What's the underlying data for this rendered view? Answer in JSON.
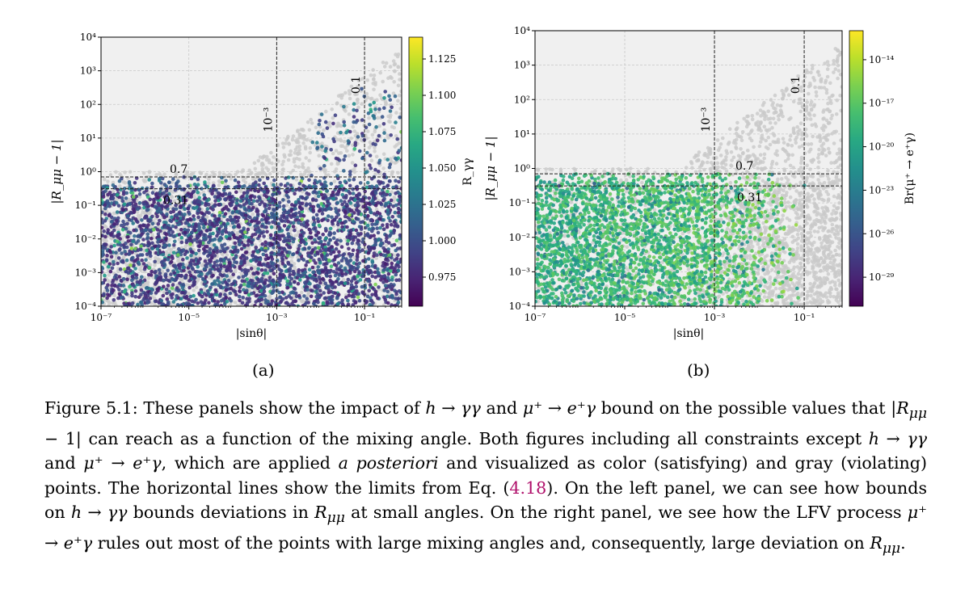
{
  "figure": {
    "panels": [
      {
        "id": "a",
        "sublabel": "(a)",
        "xlabel": "|sinθ|",
        "ylabel": "|R_μμ − 1|",
        "colorbar_label": "R_γγ",
        "colorbar_ticks": [
          "1.125",
          "1.100",
          "1.075",
          "1.050",
          "1.025",
          "1.000",
          "0.975"
        ],
        "x_ticks": [
          "10⁻⁷",
          "10⁻⁵",
          "10⁻³",
          "10⁻¹"
        ],
        "y_ticks": [
          "10⁴",
          "10³",
          "10²",
          "10¹",
          "10⁰",
          "10⁻¹",
          "10⁻²",
          "10⁻³",
          "10⁻⁴"
        ],
        "vline_labels": [
          "10⁻³",
          "0.1"
        ],
        "hline_labels": [
          "0.7",
          "0.31"
        ]
      },
      {
        "id": "b",
        "sublabel": "(b)",
        "xlabel": "|sinθ|",
        "ylabel": "|R_μμ − 1|",
        "colorbar_label": "Br(μ⁺ → e⁺γ)",
        "colorbar_ticks": [
          "10⁻¹⁴",
          "10⁻¹⁷",
          "10⁻²⁰",
          "10⁻²³",
          "10⁻²⁶",
          "10⁻²⁹"
        ],
        "x_ticks": [
          "10⁻⁷",
          "10⁻⁵",
          "10⁻³",
          "10⁻¹"
        ],
        "y_ticks": [
          "10⁴",
          "10³",
          "10²",
          "10¹",
          "10⁰",
          "10⁻¹",
          "10⁻²",
          "10⁻³",
          "10⁻⁴"
        ],
        "vline_labels": [
          "10⁻³",
          "0.1"
        ],
        "hline_labels": [
          "0.7",
          "0.31"
        ]
      }
    ]
  },
  "chart_data": [
    {
      "type": "scatter",
      "title": "",
      "xlabel": "|sinθ|",
      "ylabel": "|R_μμ − 1|",
      "xscale": "log",
      "yscale": "log",
      "xlim": [
        1e-07,
        0.7
      ],
      "ylim": [
        0.0001,
        10000.0
      ],
      "colorbar": {
        "label": "R_γγ",
        "range": [
          0.955,
          1.14
        ],
        "colormap": "viridis"
      },
      "reference_lines": {
        "vertical": [
          0.001,
          0.1
        ],
        "horizontal": [
          0.7,
          0.31
        ]
      },
      "gray_points": "violating",
      "colored_points": "satisfying",
      "grid": true
    },
    {
      "type": "scatter",
      "title": "",
      "xlabel": "|sinθ|",
      "ylabel": "|R_μμ − 1|",
      "xscale": "log",
      "yscale": "log",
      "xlim": [
        1e-07,
        0.7
      ],
      "ylim": [
        0.0001,
        10000.0
      ],
      "colorbar": {
        "label": "Br(μ⁺ → e⁺γ)",
        "range": [
          1e-31,
          1e-12
        ],
        "scale": "log",
        "colormap": "viridis"
      },
      "reference_lines": {
        "vertical": [
          0.001,
          0.1
        ],
        "horizontal": [
          0.7,
          0.31
        ]
      },
      "gray_points": "violating",
      "colored_points": "satisfying",
      "grid": true
    }
  ],
  "caption": {
    "l1_a": "Figure 5.1: These panels show the impact of ",
    "l1_m1": "h → γγ",
    "l1_b": " and ",
    "l1_m2": "μ⁺ → e⁺γ",
    "l1_c": " bound on the possible values",
    "l2_a": "that ",
    "l2_m1": "|R",
    "l2_sub1": "μμ",
    "l2_m1b": " − 1|",
    "l2_b": " can reach as a function of the mixing angle. Both figures including all constraints",
    "l3_a": "except ",
    "l3_m1": "h → γγ",
    "l3_b": " and ",
    "l3_m2": "μ⁺ → e⁺γ",
    "l3_c": ", which are applied ",
    "l3_it": "a posteriori",
    "l3_d": " and visualized as color (satisfying)",
    "l4_a": "and gray (violating) points. The horizontal lines show the limits from Eq. (",
    "l4_ref": "4.18",
    "l4_b": "). On the left panel,",
    "l5_a": "we can see how bounds on ",
    "l5_m1": "h → γγ",
    "l5_b": " bounds deviations in ",
    "l5_m2": "R",
    "l5_sub2": "μμ",
    "l5_c": " at small angles. On the right panel,",
    "l6_a": "we see how the LFV process ",
    "l6_m1": "μ⁺ → e⁺γ",
    "l6_b": " rules out most of the points with large mixing angles and,",
    "l7_a": "consequently, large deviation on ",
    "l7_m1": "R",
    "l7_sub1": "μμ",
    "l7_b": "."
  }
}
